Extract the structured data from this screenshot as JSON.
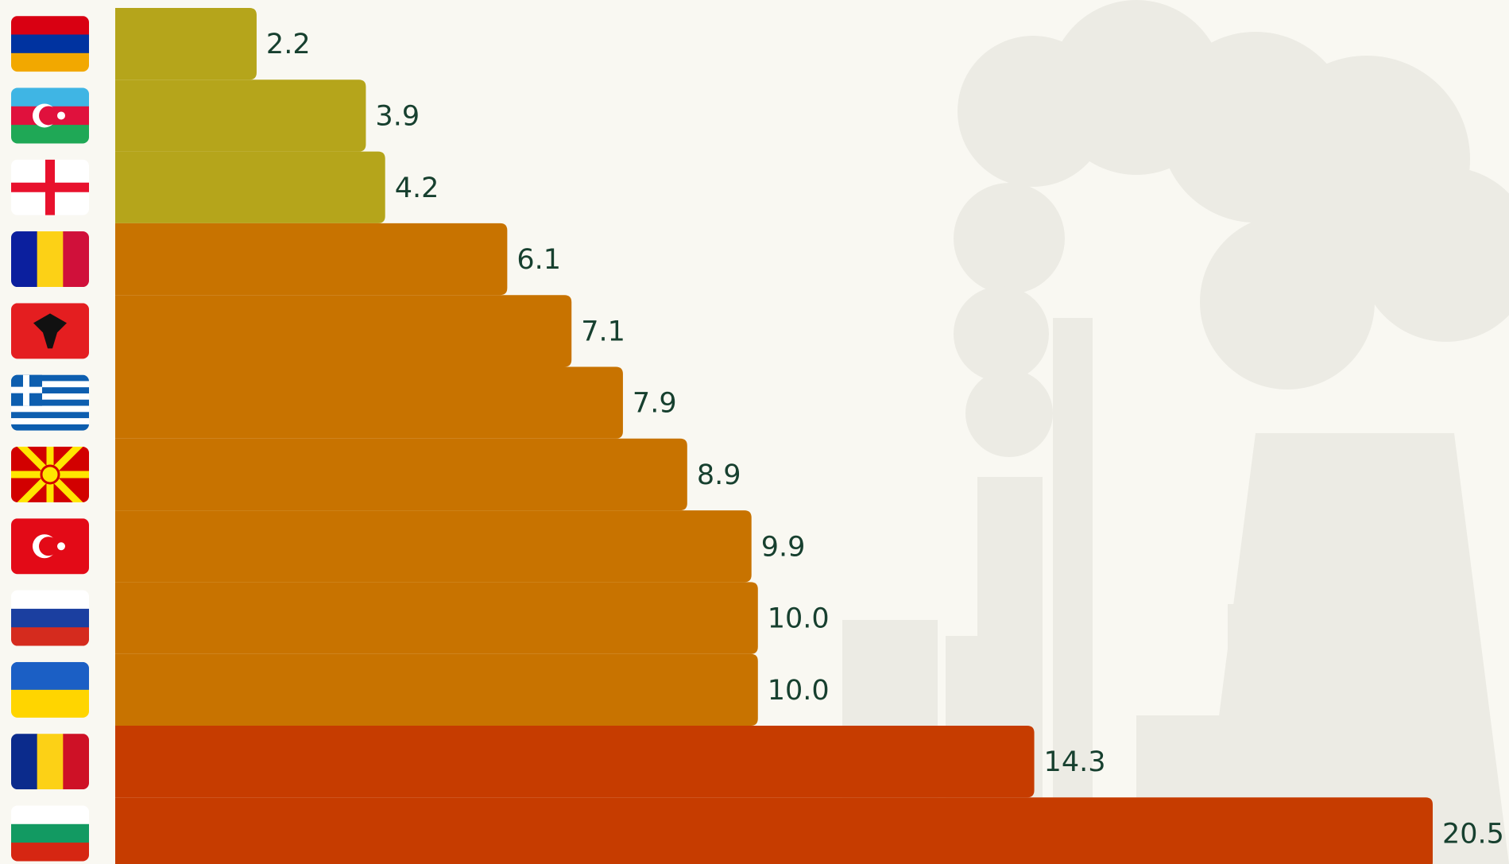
{
  "chart_data": {
    "type": "bar",
    "orientation": "horizontal",
    "values": [
      2.2,
      3.9,
      4.2,
      6.1,
      7.1,
      7.9,
      8.9,
      9.9,
      10,
      10,
      14.3,
      20.5
    ],
    "value_labels": [
      "2.2",
      "3.9",
      "4.2",
      "6.1",
      "7.1",
      "7.9",
      "8.9",
      "9.9",
      "10.0",
      "10.0",
      "14.3",
      "20.5"
    ],
    "colors": [
      "#b5a51b",
      "#b5a51b",
      "#b5a51b",
      "#c87300",
      "#c87300",
      "#c87300",
      "#c87300",
      "#c87300",
      "#c87300",
      "#c87300",
      "#c63c00",
      "#c63c00"
    ]
  }
}
